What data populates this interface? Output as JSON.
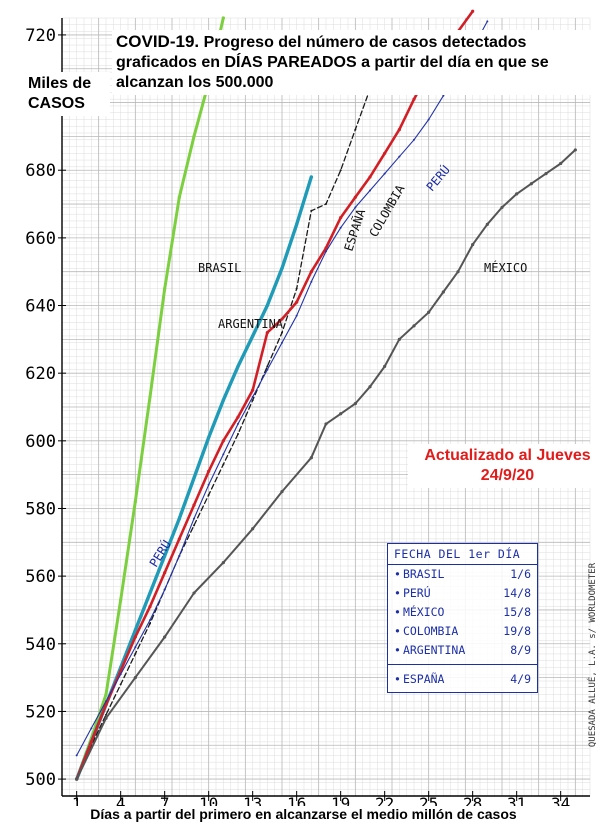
{
  "title": {
    "main": "COVID-19.",
    "rest": "Progreso del número de casos detectados graficados en DÍAS PAREADOS a partir del día en que se alcanzan los 500.000"
  },
  "ylabel": "Miles de CASOS",
  "xlabel": "Días a partir del primero en alcanzarse el medio millón de casos",
  "update_note": "Actualizado al Jueves 24/9/20",
  "side_note": "QUESADA ALLUÉ, L.A. s/ WORLDOMETER",
  "legend": {
    "header": "FECHA DEL 1er DÍA",
    "rows": [
      {
        "name": "BRASIL",
        "date": "1/6"
      },
      {
        "name": "PERÚ",
        "date": "14/8"
      },
      {
        "name": "MÉXICO",
        "date": "15/8"
      },
      {
        "name": "COLOMBIA",
        "date": "19/8"
      },
      {
        "name": "ARGENTINA",
        "date": "8/9"
      },
      {
        "name": "ESPAÑA",
        "date": "4/9"
      }
    ]
  },
  "chart_data": {
    "type": "line",
    "xlabel": "Días a partir del primero en alcanzarse el medio millón de casos",
    "ylabel": "Miles de CASOS",
    "xlim": [
      0,
      36
    ],
    "ylim": [
      495,
      725
    ],
    "x_ticks": [
      1,
      4,
      7,
      10,
      13,
      16,
      19,
      22,
      25,
      28,
      31,
      34
    ],
    "y_ticks": [
      500,
      520,
      540,
      560,
      580,
      600,
      620,
      640,
      660,
      680,
      700,
      720
    ],
    "grid": true,
    "series": [
      {
        "name": "BRASIL",
        "color": "#7ccf3e",
        "dash": "",
        "x": [
          1,
          2,
          3,
          4,
          5,
          6,
          7,
          8,
          9,
          10,
          11
        ],
        "y": [
          500,
          512,
          525,
          553,
          582,
          613,
          645,
          672,
          690,
          706,
          725
        ]
      },
      {
        "name": "ARGENTINA",
        "color": "#1f9bb8",
        "dash": "",
        "x": [
          1,
          2,
          3,
          4,
          5,
          6,
          7,
          8,
          9,
          10,
          11,
          12,
          13,
          14,
          15,
          16,
          17
        ],
        "y": [
          500,
          511,
          522,
          533,
          544,
          555,
          566,
          577,
          589,
          601,
          612,
          622,
          631,
          640,
          651,
          664,
          678
        ]
      },
      {
        "name": "ESPAÑA",
        "color": "#1a1a1a",
        "dash": "5,3",
        "x": [
          1,
          2,
          3,
          4,
          5,
          6,
          7,
          8,
          9,
          10,
          11,
          12,
          13,
          14,
          15,
          16,
          17,
          18,
          19,
          20,
          21
        ],
        "y": [
          500,
          510,
          519,
          528,
          537,
          546,
          556,
          566,
          575,
          584,
          593,
          602,
          612,
          622,
          632,
          645,
          668,
          670,
          680,
          692,
          704
        ]
      },
      {
        "name": "COLOMBIA",
        "color": "#d21f26",
        "dash": "",
        "x": [
          1,
          2,
          3,
          4,
          5,
          6,
          7,
          8,
          9,
          10,
          11,
          12,
          13,
          14,
          15,
          16,
          17,
          18,
          19,
          20,
          21,
          22,
          23,
          24,
          25,
          26,
          27,
          28
        ],
        "y": [
          500,
          511,
          522,
          532,
          542,
          551,
          561,
          571,
          581,
          591,
          600,
          607,
          615,
          632,
          636,
          641,
          650,
          657,
          666,
          672,
          678,
          685,
          692,
          701,
          709,
          716,
          721,
          727
        ]
      },
      {
        "name": "PERÚ",
        "color": "#2233a8",
        "dash": "",
        "x": [
          1,
          2,
          3,
          4,
          5,
          6,
          7,
          8,
          9,
          10,
          11,
          12,
          13,
          14,
          15,
          16,
          17,
          18,
          19,
          20,
          21,
          22,
          23,
          24,
          25,
          26,
          27,
          28,
          29
        ],
        "y": [
          507,
          515,
          523,
          531,
          539,
          547,
          556,
          566,
          577,
          587,
          596,
          605,
          613,
          621,
          629,
          637,
          647,
          656,
          663,
          669,
          674,
          679,
          684,
          689,
          695,
          702,
          709,
          716,
          724
        ]
      },
      {
        "name": "MÉXICO",
        "color": "#555555",
        "dash": "",
        "x": [
          1,
          3,
          5,
          7,
          9,
          11,
          13,
          15,
          17,
          18,
          19,
          20,
          21,
          22,
          23,
          24,
          25,
          26,
          27,
          28,
          29,
          30,
          31,
          32,
          33,
          34,
          35
        ],
        "y": [
          500,
          518,
          530,
          542,
          555,
          564,
          574,
          585,
          595,
          605,
          608,
          611,
          616,
          622,
          630,
          634,
          638,
          644,
          650,
          658,
          664,
          669,
          673,
          676,
          679,
          682,
          686
        ]
      }
    ],
    "line_labels": [
      {
        "text": "BRASIL",
        "series": "BRASIL"
      },
      {
        "text": "ARGENTINA",
        "series": "ARGENTINA"
      },
      {
        "text": "ESPAÑA",
        "series": "ESPAÑA"
      },
      {
        "text": "COLOMBIA",
        "series": "COLOMBIA"
      },
      {
        "text": "PERÚ",
        "series": "PERÚ"
      },
      {
        "text": "PERÚ",
        "series": "PERÚ"
      },
      {
        "text": "MÉXICO",
        "series": "MÉXICO"
      }
    ]
  }
}
